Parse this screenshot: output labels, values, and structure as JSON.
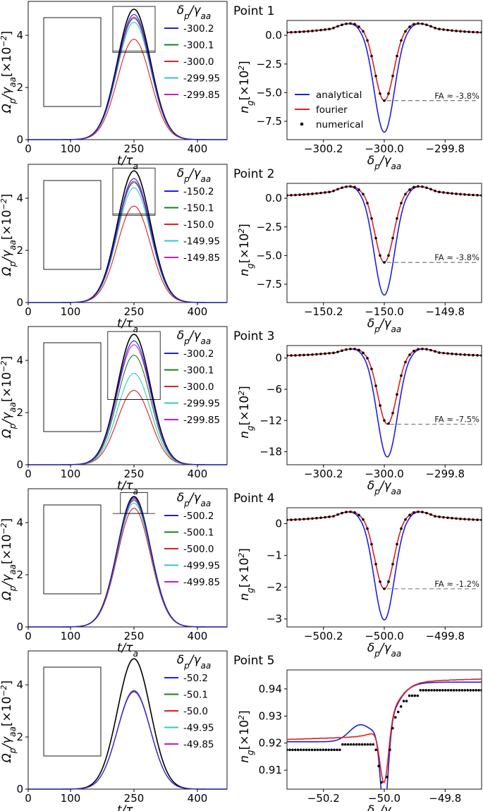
{
  "colors": {
    "analytical": "#1f1fe0",
    "fourier": "#e01f1f",
    "numerical": "#000000",
    "blue": "#1f1fe0",
    "green": "#1a7f1a",
    "red": "#e01f1f",
    "cyan": "#2fc8c8",
    "magenta": "#c020c0",
    "envelope": "#000000",
    "dashes": "#000000"
  },
  "common": {
    "left_xlabel": "t/τa",
    "left_ylabel": "Ωp/γaa[×10⁻²]",
    "right_ylabel": "ng[×10²]",
    "left_xticks": [
      "0",
      "100",
      "250",
      "400"
    ],
    "left_yticks": [
      "0",
      "2",
      "4"
    ],
    "legend_title": "δp/γaa",
    "method_legend": [
      "analytical",
      "fourier",
      "numerical"
    ]
  },
  "chart_data": [
    {
      "panel": "1-left",
      "type": "line",
      "xlim": [
        0,
        470
      ],
      "ylim": [
        0,
        5.3
      ],
      "envelope_peak": 5.0,
      "peaks": [
        4.8,
        4.65,
        3.85,
        4.5,
        4.7
      ],
      "floor": 3.4,
      "legend": [
        "-300.2",
        "-300.1",
        "-300.0",
        "-299.95",
        "-299.85"
      ]
    },
    {
      "panel": "1-right",
      "type": "line",
      "title": "Point 1",
      "xlabel": "δp/γaa",
      "xticks": [
        "−300.2",
        "−300.0",
        "−299.8"
      ],
      "xlim": [
        -300.32,
        -299.68
      ],
      "yticks": [
        "0.0",
        "−2.5",
        "−5.0",
        "−7.5"
      ],
      "ytick_values": [
        0,
        -2.5,
        -5,
        -7.5
      ],
      "ylim": [
        -9.1,
        1.3
      ],
      "center": -300.0,
      "analytical_min": -8.45,
      "fourier_min": -5.7,
      "max": 1.05,
      "tail": 0.2,
      "fa_label": "FA ≈ -3.8%",
      "method_legend": true
    },
    {
      "panel": "2-left",
      "type": "line",
      "xlim": [
        0,
        470
      ],
      "ylim": [
        0,
        5.3
      ],
      "envelope_peak": 5.05,
      "peaks": [
        4.75,
        4.6,
        3.7,
        4.4,
        4.65
      ],
      "floor": 3.4,
      "legend": [
        "-150.2",
        "-150.1",
        "-150.0",
        "-149.95",
        "-149.85"
      ]
    },
    {
      "panel": "2-right",
      "type": "line",
      "title": "Point 2",
      "xlabel": "δp/γaa",
      "xticks": [
        "−150.2",
        "−150.0",
        "−149.8"
      ],
      "xlim": [
        -150.32,
        -149.68
      ],
      "yticks": [
        "0.0",
        "−2.5",
        "−5.0",
        "−7.5"
      ],
      "ytick_values": [
        0,
        -2.5,
        -5,
        -7.5
      ],
      "ylim": [
        -9.1,
        1.3
      ],
      "center": -150.0,
      "analytical_min": -8.45,
      "fourier_min": -5.6,
      "max": 1.05,
      "tail": 0.2,
      "fa_label": "FA ≈ -3.8%",
      "method_legend": false
    },
    {
      "panel": "3-left",
      "type": "line",
      "xlim": [
        0,
        470
      ],
      "ylim": [
        0,
        5.3
      ],
      "envelope_peak": 5.0,
      "peaks": [
        4.75,
        4.2,
        2.85,
        3.5,
        4.6
      ],
      "floor": 2.5,
      "legend": [
        "-300.2",
        "-300.1",
        "-300.0",
        "-299.95",
        "-299.85"
      ]
    },
    {
      "panel": "3-right",
      "type": "line",
      "title": "Point 3",
      "xlabel": "δp/γaa",
      "xticks": [
        "−300.2",
        "−300.0",
        "−299.8"
      ],
      "xlim": [
        -300.32,
        -299.68
      ],
      "yticks": [
        "0",
        "−6",
        "−12",
        "−18"
      ],
      "ytick_values": [
        0,
        -6,
        -12,
        -18
      ],
      "ylim": [
        -20.5,
        2.4
      ],
      "center": -299.99,
      "analytical_min": -19.0,
      "fourier_min": -12.7,
      "max": 1.8,
      "tail": 0.4,
      "fa_label": "FA ≈ -7.5%",
      "method_legend": false
    },
    {
      "panel": "4-left",
      "type": "line",
      "xlim": [
        0,
        470
      ],
      "ylim": [
        0,
        5.3
      ],
      "envelope_peak": 5.0,
      "peaks": [
        4.95,
        4.85,
        4.55,
        4.75,
        4.9
      ],
      "floor": 4.35,
      "legend": [
        "-500.2",
        "-500.1",
        "-500.0",
        "-499.95",
        "-499.85"
      ]
    },
    {
      "panel": "4-right",
      "type": "line",
      "title": "Point 4",
      "xlabel": "δp/γaa",
      "xticks": [
        "−500.2",
        "−500.0",
        "−499.8"
      ],
      "xlim": [
        -500.32,
        -499.68
      ],
      "yticks": [
        "0",
        "−1",
        "−2",
        "−3"
      ],
      "ytick_values": [
        0,
        -1,
        -2,
        -3
      ],
      "ylim": [
        -3.25,
        0.5
      ],
      "center": -500.0,
      "analytical_min": -3.03,
      "fourier_min": -2.05,
      "max": 0.38,
      "tail": 0.1,
      "fa_label": "FA ≈ -1.2%",
      "method_legend": false
    },
    {
      "panel": "5-left",
      "type": "line",
      "xlim": [
        0,
        470
      ],
      "ylim": [
        0,
        5.3
      ],
      "envelope_peak": 5.0,
      "peaks": [
        3.78,
        3.75,
        3.72,
        3.74,
        3.76
      ],
      "floor": 0,
      "legend": [
        "-50.2",
        "-50.1",
        "-50.0",
        "-49.95",
        "-49.85"
      ]
    },
    {
      "panel": "5-right",
      "type": "line",
      "title": "Point 5",
      "xlabel": "δp/γaa",
      "xticks": [
        "−50.2",
        "−50.0",
        "−49.8"
      ],
      "xlim": [
        -50.32,
        -49.68
      ],
      "yticks": [
        "0.91",
        "0.92",
        "0.93",
        "0.94"
      ],
      "ytick_values": [
        0.91,
        0.92,
        0.93,
        0.94
      ],
      "ylim": [
        0.903,
        0.947
      ],
      "center": -50.0,
      "analytical_min": 0.904,
      "fourier_min": 0.913,
      "special": true,
      "method_legend": false
    }
  ]
}
